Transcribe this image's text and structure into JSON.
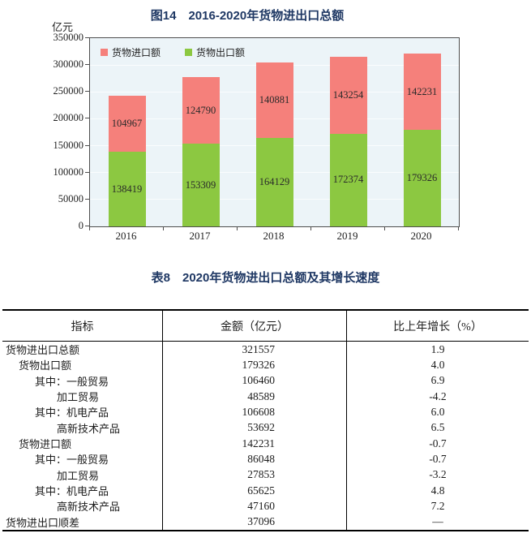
{
  "figure": {
    "title": "图14　2016-2020年货物进出口总额",
    "unit_label": "亿元",
    "legend": [
      {
        "label": "货物进口额",
        "color": "#f5807b"
      },
      {
        "label": "货物出口额",
        "color": "#8cc841"
      }
    ]
  },
  "chart_data": {
    "type": "bar",
    "stacked": true,
    "title": "图14 2016-2020年货物进出口总额",
    "ylabel": "亿元",
    "categories": [
      "2016",
      "2017",
      "2018",
      "2019",
      "2020"
    ],
    "series": [
      {
        "name": "货物出口额",
        "color": "#8cc841",
        "values": [
          138419,
          153309,
          164129,
          172374,
          179326
        ]
      },
      {
        "name": "货物进口额",
        "color": "#f5807b",
        "values": [
          104967,
          124790,
          140881,
          143254,
          142231
        ]
      }
    ],
    "ylim": [
      0,
      350000
    ],
    "ytick_step": 50000,
    "grid": true,
    "legend_position": "top-left-inside"
  },
  "table": {
    "title": "表8　2020年货物进出口总额及其增长速度",
    "headers": [
      "指标",
      "金额（亿元）",
      "比上年增长（%）"
    ],
    "rows": [
      {
        "indicator": "货物进出口总额",
        "indent": 0,
        "amount": "321557",
        "growth": "1.9"
      },
      {
        "indicator": "货物出口额",
        "indent": 1,
        "amount": "179326",
        "growth": "4.0"
      },
      {
        "indicator": "其中：一般贸易",
        "indent": 2,
        "amount": "106460",
        "growth": "6.9"
      },
      {
        "indicator": "加工贸易",
        "indent": 3,
        "amount": "48589",
        "growth": "-4.2"
      },
      {
        "indicator": "其中：机电产品",
        "indent": 2,
        "amount": "106608",
        "growth": "6.0"
      },
      {
        "indicator": "高新技术产品",
        "indent": 3,
        "amount": "53692",
        "growth": "6.5"
      },
      {
        "indicator": "货物进口额",
        "indent": 1,
        "amount": "142231",
        "growth": "-0.7"
      },
      {
        "indicator": "其中：一般贸易",
        "indent": 2,
        "amount": "86048",
        "growth": "-0.7"
      },
      {
        "indicator": "加工贸易",
        "indent": 3,
        "amount": "27853",
        "growth": "-3.2"
      },
      {
        "indicator": "其中：机电产品",
        "indent": 2,
        "amount": "65625",
        "growth": "4.8"
      },
      {
        "indicator": "高新技术产品",
        "indent": 3,
        "amount": "47160",
        "growth": "7.2"
      },
      {
        "indicator": "货物进出口顺差",
        "indent": 0,
        "amount": "37096",
        "growth": "—"
      }
    ]
  },
  "colors": {
    "title_color": "#1f3864",
    "plot_background": "#ecf4f8",
    "gridline": "#fafdfe",
    "axis": "#4d4d4d",
    "import_bar": "#f5807b",
    "export_bar": "#8cc841"
  }
}
